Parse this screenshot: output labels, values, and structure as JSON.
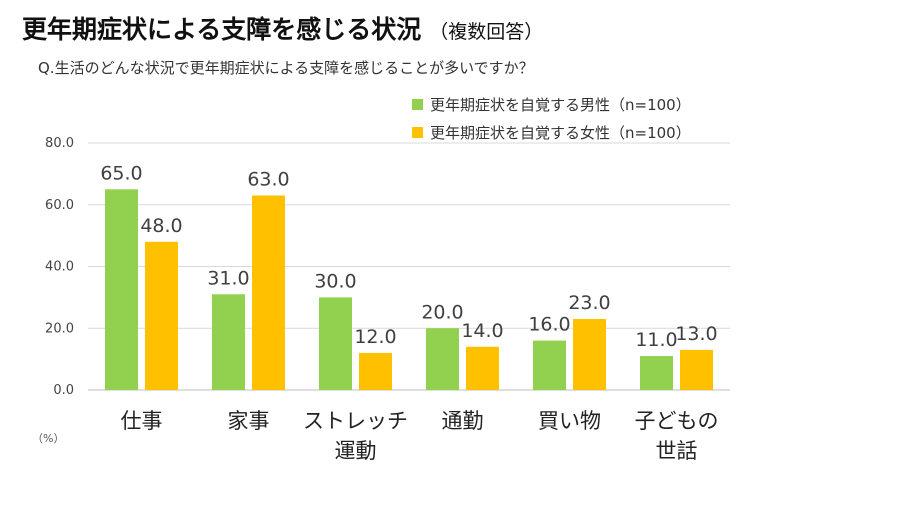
{
  "header": {
    "title": "更年期症状による支障を感じる状況",
    "subtitle": "（複数回答）",
    "question": "Q.生活のどんな状況で更年期症状による支障を感じることが多いですか？"
  },
  "chart_data": {
    "type": "bar",
    "title": "更年期症状による支障を感じる状況",
    "categories": [
      [
        "仕事"
      ],
      [
        "家事"
      ],
      [
        "ストレッチ",
        "運動"
      ],
      [
        "通勤"
      ],
      [
        "買い物"
      ],
      [
        "子どもの",
        "世話"
      ]
    ],
    "series": [
      {
        "name": "更年期症状を自覚する男性（n=100）",
        "color": "#92d050",
        "values": [
          65.0,
          31.0,
          30.0,
          20.0,
          16.0,
          11.0
        ]
      },
      {
        "name": "更年期症状を自覚する女性（n=100）",
        "color": "#ffc000",
        "values": [
          48.0,
          63.0,
          12.0,
          14.0,
          23.0,
          13.0
        ]
      }
    ],
    "ylim": [
      0,
      80
    ],
    "yticks": [
      0,
      20,
      40,
      60,
      80
    ],
    "ytick_labels": [
      "0.0",
      "20.0",
      "40.0",
      "60.0",
      "80.0"
    ],
    "unit_label": "（%）",
    "grid": true,
    "legend_position": "top-right"
  }
}
